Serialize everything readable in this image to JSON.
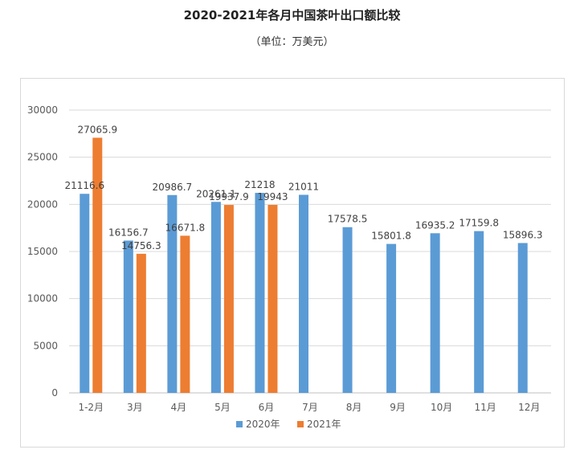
{
  "header": {
    "title": "2020-2021年各月中国茶叶出口额比较",
    "subtitle": "（单位：万美元）"
  },
  "chart_data": {
    "type": "bar",
    "title": "2020-2021年各月中国茶叶出口额比较",
    "subtitle": "（单位：万美元）",
    "categories": [
      "1-2月",
      "3月",
      "4月",
      "5月",
      "6月",
      "7月",
      "8月",
      "9月",
      "10月",
      "11月",
      "12月"
    ],
    "series": [
      {
        "name": "2020年",
        "color": "#5b9bd5",
        "values": [
          21116.6,
          16156.7,
          20986.7,
          20261.1,
          21218,
          21011,
          17578.5,
          15801.8,
          16935.2,
          17159.8,
          15896.3
        ],
        "labels": [
          "21116.6",
          "16156.7",
          "20986.7",
          "20261.1",
          "21218",
          "21011",
          "17578.5",
          "15801.8",
          "16935.2",
          "17159.8",
          "15896.3"
        ]
      },
      {
        "name": "2021年",
        "color": "#ed7d31",
        "values": [
          27065.9,
          14756.3,
          16671.8,
          19937.9,
          19943,
          null,
          null,
          null,
          null,
          null,
          null
        ],
        "labels": [
          "27065.9",
          "14756.3",
          "16671.8",
          "19937.9",
          "19943",
          "",
          "",
          "",
          "",
          "",
          ""
        ]
      }
    ],
    "yticks": [
      "0",
      "5000",
      "10000",
      "15000",
      "20000",
      "25000",
      "30000"
    ],
    "ylim": [
      0,
      30000
    ],
    "xlabel": "",
    "ylabel": "",
    "grid": true,
    "legend": "bottom"
  }
}
